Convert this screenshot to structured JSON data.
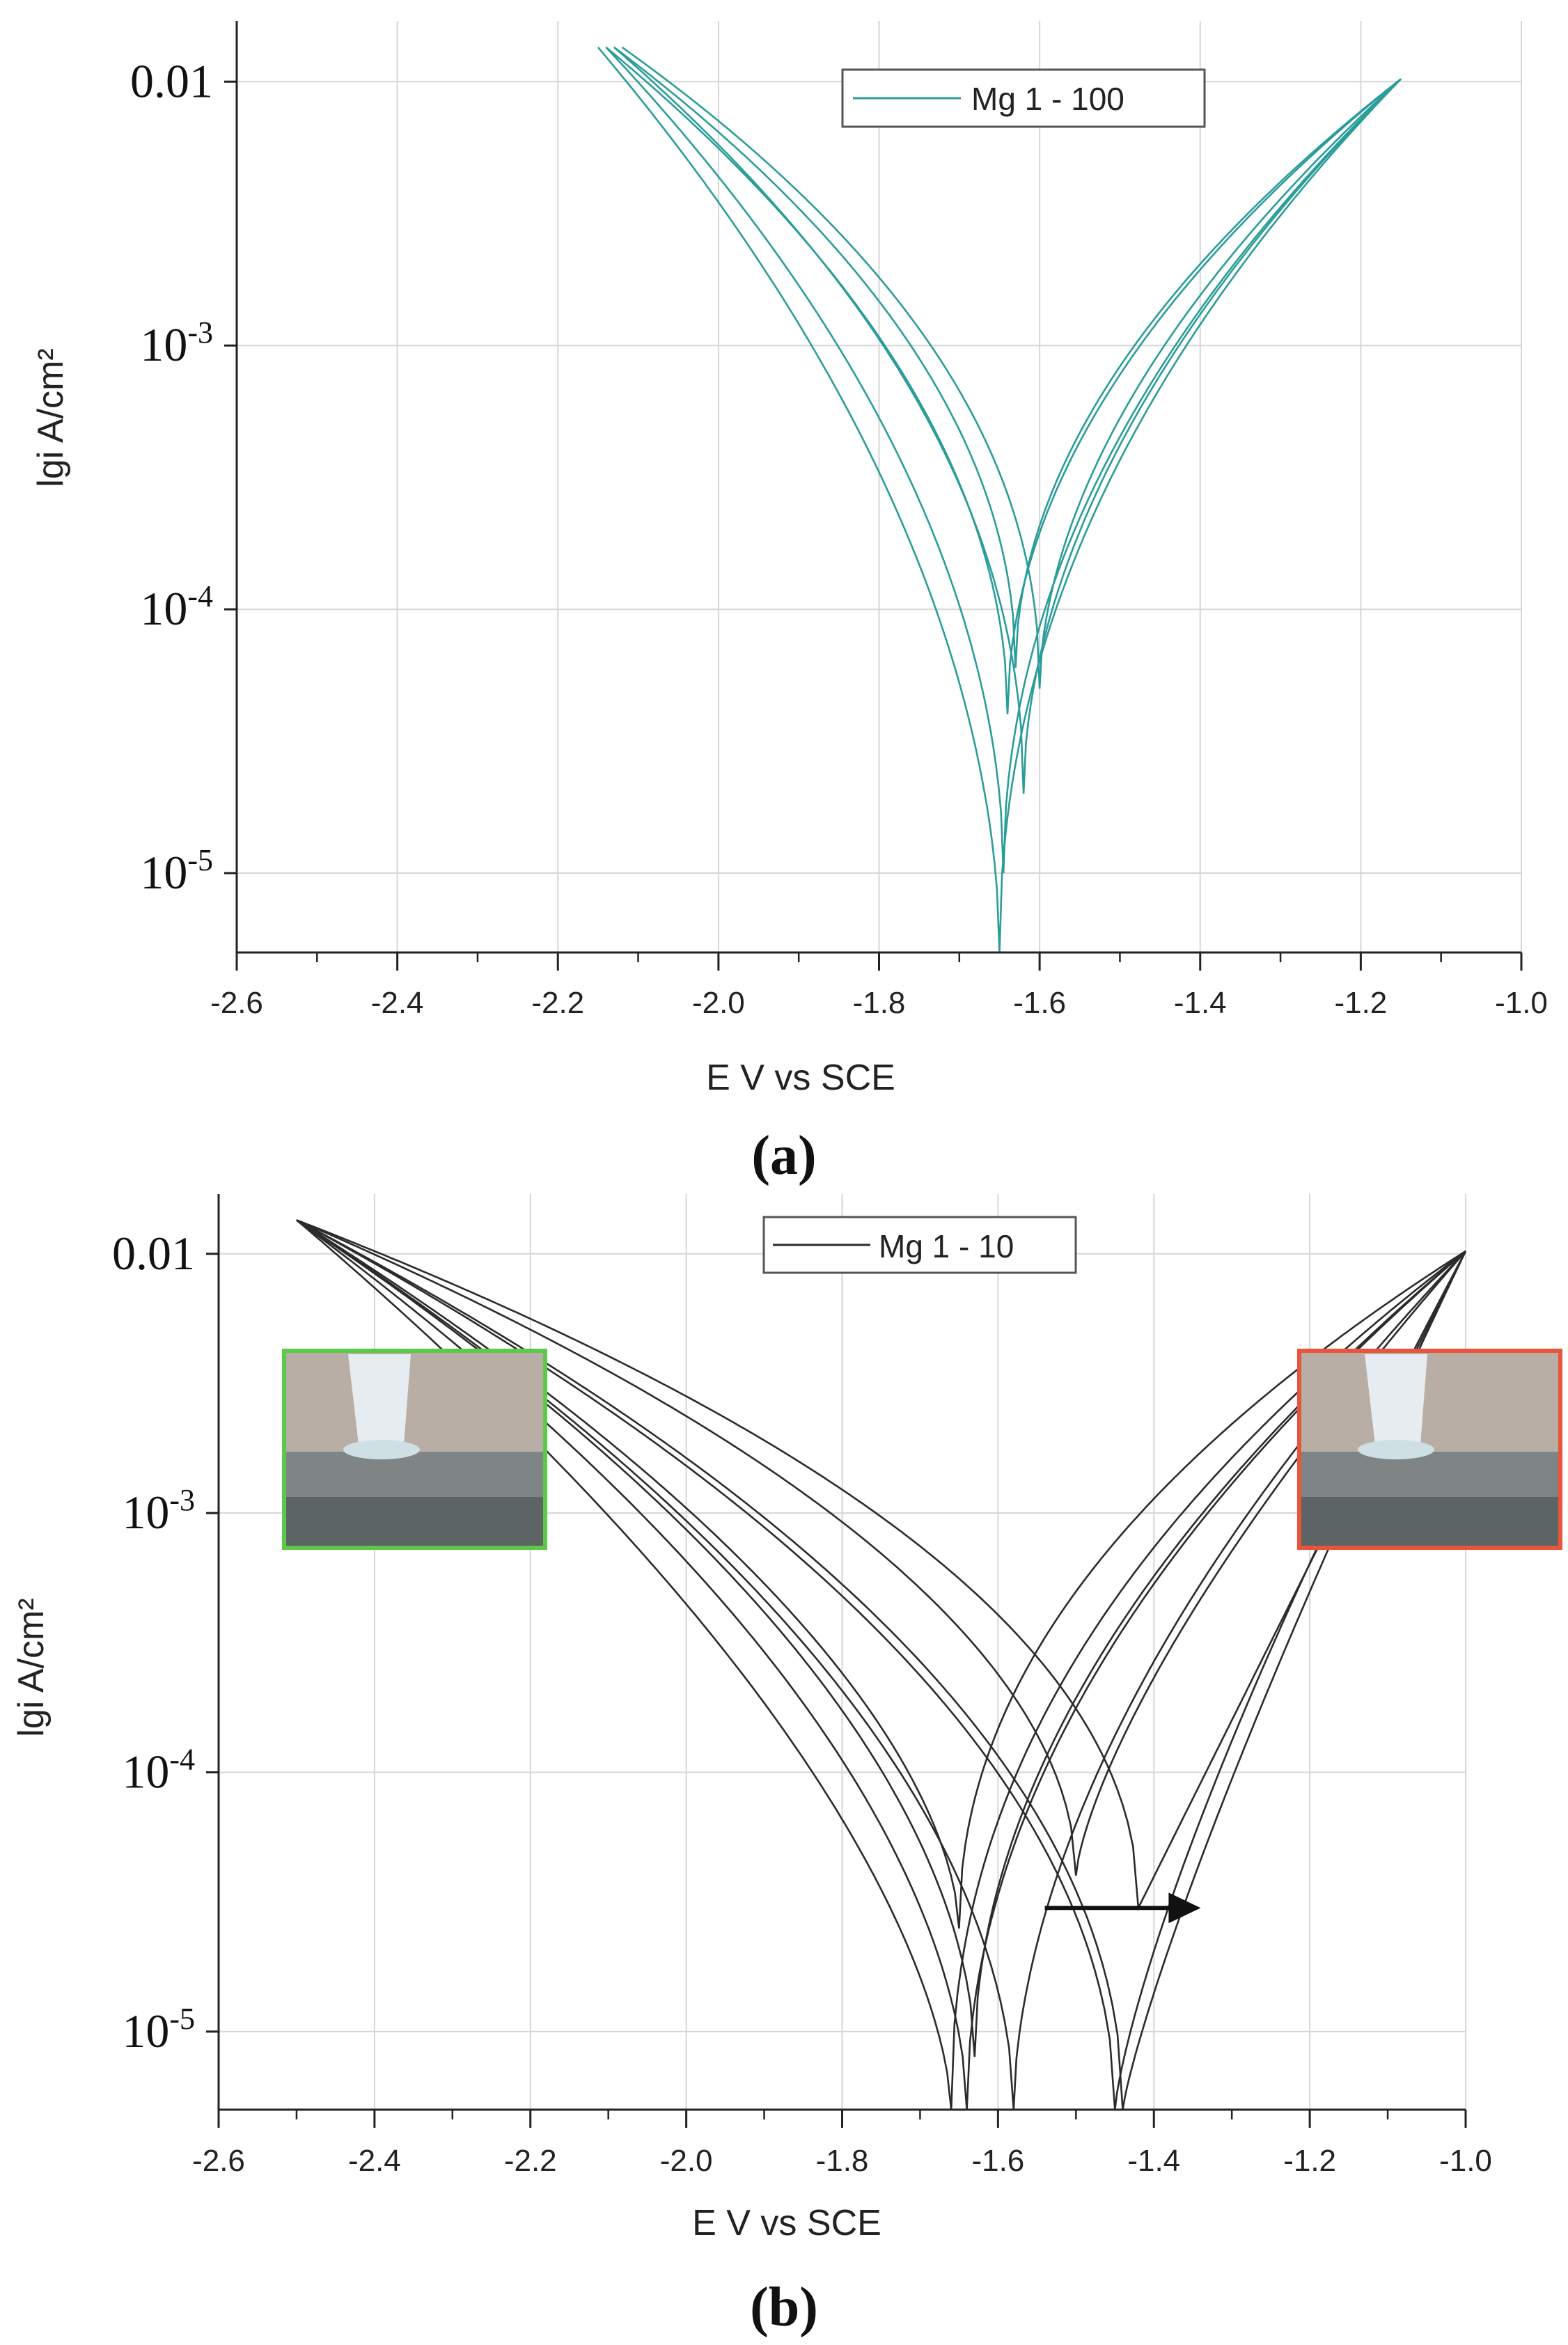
{
  "chart_data": [
    {
      "panel_label": "(a)",
      "type": "line",
      "xlabel": "E  V vs SCE",
      "ylabel": "lgi  A/cm²",
      "xlim": [
        -2.6,
        -1.0
      ],
      "ylim": [
        5e-06,
        0.017
      ],
      "yscale": "log",
      "grid": true,
      "legend_position": "top-center",
      "xticks": [
        -2.6,
        -2.4,
        -2.2,
        -2.0,
        -1.8,
        -1.6,
        -1.4,
        -1.2,
        -1.0
      ],
      "xtick_labels": [
        "-2.6",
        "-2.4",
        "-2.2",
        "-2.0",
        "-1.8",
        "-1.6",
        "-1.4",
        "-1.2",
        "-1.0"
      ],
      "yticks": [
        1e-05,
        0.0001,
        0.001,
        0.01
      ],
      "ytick_labels": [
        {
          "base": "10",
          "exp": "-5"
        },
        {
          "base": "10",
          "exp": "-4"
        },
        {
          "base": "10",
          "exp": "-3"
        },
        {
          "base": "0.01",
          "exp": ""
        }
      ],
      "series_name": "Mg 1 - 100",
      "color": "#2a9d9a",
      "series": [
        {
          "ecorr": -1.65,
          "imin": 5e-06,
          "x_start": -2.15,
          "x_end": -1.15,
          "k_c": 1.9,
          "k_a": 2.1
        },
        {
          "ecorr": -1.645,
          "imin": 1e-05,
          "x_start": -2.14,
          "x_end": -1.15,
          "k_c": 1.95,
          "k_a": 2.05
        },
        {
          "ecorr": -1.64,
          "imin": 4e-05,
          "x_start": -2.14,
          "x_end": -1.15,
          "k_c": 2.0,
          "k_a": 2.0
        },
        {
          "ecorr": -1.63,
          "imin": 6e-05,
          "x_start": -2.13,
          "x_end": -1.15,
          "k_c": 2.05,
          "k_a": 1.95
        },
        {
          "ecorr": -1.62,
          "imin": 2e-05,
          "x_start": -2.13,
          "x_end": -1.15,
          "k_c": 2.1,
          "k_a": 1.9
        },
        {
          "ecorr": -1.6,
          "imin": 5e-05,
          "x_start": -2.12,
          "x_end": -1.15,
          "k_c": 2.15,
          "k_a": 1.85
        }
      ]
    },
    {
      "panel_label": "(b)",
      "type": "line",
      "xlabel": "E  V vs SCE",
      "ylabel": "lgi  A/cm²",
      "xlim": [
        -2.6,
        -1.0
      ],
      "ylim": [
        5e-06,
        0.017
      ],
      "yscale": "log",
      "grid": true,
      "legend_position": "top-center",
      "xticks": [
        -2.6,
        -2.4,
        -2.2,
        -2.0,
        -1.8,
        -1.6,
        -1.4,
        -1.2,
        -1.0
      ],
      "xtick_labels": [
        "-2.6",
        "-2.4",
        "-2.2",
        "-2.0",
        "-1.8",
        "-1.6",
        "-1.4",
        "-1.2",
        "-1.0"
      ],
      "yticks": [
        1e-05,
        0.0001,
        0.001,
        0.01
      ],
      "ytick_labels": [
        {
          "base": "10",
          "exp": "-5"
        },
        {
          "base": "10",
          "exp": "-4"
        },
        {
          "base": "10",
          "exp": "-3"
        },
        {
          "base": "0.01",
          "exp": ""
        }
      ],
      "series_name": "Mg 1 - 10",
      "color": "#2b2b2b",
      "series": [
        {
          "ecorr": -1.66,
          "imin": 5e-06,
          "x_start": -2.5,
          "x_end": -1.0,
          "k_c": 1.6,
          "k_a": 2.2
        },
        {
          "ecorr": -1.65,
          "imin": 2.5e-05,
          "x_start": -2.5,
          "x_end": -1.0,
          "k_c": 1.7,
          "k_a": 2.1
        },
        {
          "ecorr": -1.64,
          "imin": 5e-06,
          "x_start": -2.5,
          "x_end": -1.0,
          "k_c": 1.8,
          "k_a": 2.0
        },
        {
          "ecorr": -1.63,
          "imin": 8e-06,
          "x_start": -2.5,
          "x_end": -1.0,
          "k_c": 1.85,
          "k_a": 1.95
        },
        {
          "ecorr": -1.58,
          "imin": 5e-06,
          "x_start": -2.5,
          "x_end": -1.0,
          "k_c": 1.9,
          "k_a": 1.8
        },
        {
          "ecorr": -1.5,
          "imin": 4e-05,
          "x_start": -2.5,
          "x_end": -1.0,
          "k_c": 1.95,
          "k_a": 1.4
        },
        {
          "ecorr": -1.45,
          "imin": 5e-06,
          "x_start": -2.5,
          "x_end": -1.0,
          "k_c": 2.0,
          "k_a": 1.3
        },
        {
          "ecorr": -1.44,
          "imin": 5e-06,
          "x_start": -2.5,
          "x_end": -1.0,
          "k_c": 2.05,
          "k_a": 1.2
        },
        {
          "ecorr": -1.42,
          "imin": 3e-05,
          "x_start": -2.5,
          "x_end": -1.0,
          "k_c": 2.1,
          "k_a": 1.0
        }
      ],
      "annotations": [
        {
          "type": "arrow",
          "x_from": -1.54,
          "x_to": -1.34,
          "y": 3e-05,
          "direction": "right"
        },
        {
          "type": "inset-photo",
          "border_color": "#5cc94a",
          "x_range": [
            -2.52,
            -2.18
          ],
          "y_range": [
            0.0007,
            0.0042
          ]
        },
        {
          "type": "inset-photo",
          "border_color": "#e8553b",
          "x_range": [
            -1.21,
            -0.87
          ],
          "y_range": [
            0.0007,
            0.0042
          ]
        }
      ]
    }
  ]
}
